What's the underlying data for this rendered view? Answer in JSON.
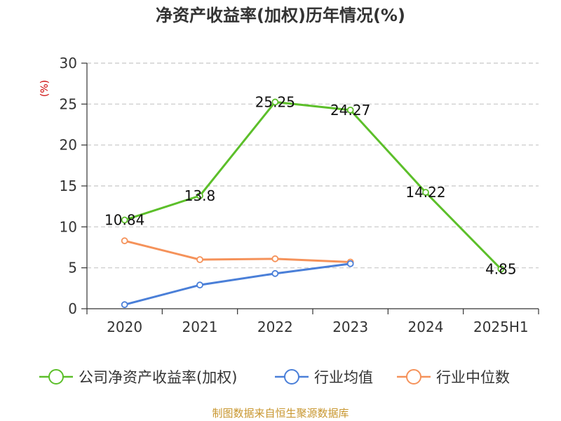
{
  "chart_data": {
    "type": "line",
    "title": "净资产收益率(加权)历年情况(%)",
    "unit_label": "(%)",
    "categories": [
      "2020",
      "2021",
      "2022",
      "2023",
      "2024",
      "2025H1"
    ],
    "ylim": [
      0,
      30
    ],
    "yticks": [
      "0",
      "5",
      "10",
      "15",
      "20",
      "25",
      "30"
    ],
    "grid": true,
    "legend_position": "bottom",
    "series": [
      {
        "name": "公司净资产收益率(加权)",
        "color": "#5cbf2a",
        "values": [
          10.84,
          13.8,
          25.25,
          24.27,
          14.22,
          4.85
        ],
        "labels": [
          "10.84",
          "13.8",
          "25.25",
          "24.27",
          "14.22",
          "4.85"
        ]
      },
      {
        "name": "行业均值",
        "color": "#4a7fd8",
        "values": [
          0.5,
          2.9,
          4.3,
          5.5,
          null,
          null
        ]
      },
      {
        "name": "行业中位数",
        "color": "#f5925a",
        "values": [
          8.3,
          6.0,
          6.1,
          5.7,
          null,
          null
        ]
      }
    ],
    "source": "制图数据来自恒生聚源数据库"
  }
}
